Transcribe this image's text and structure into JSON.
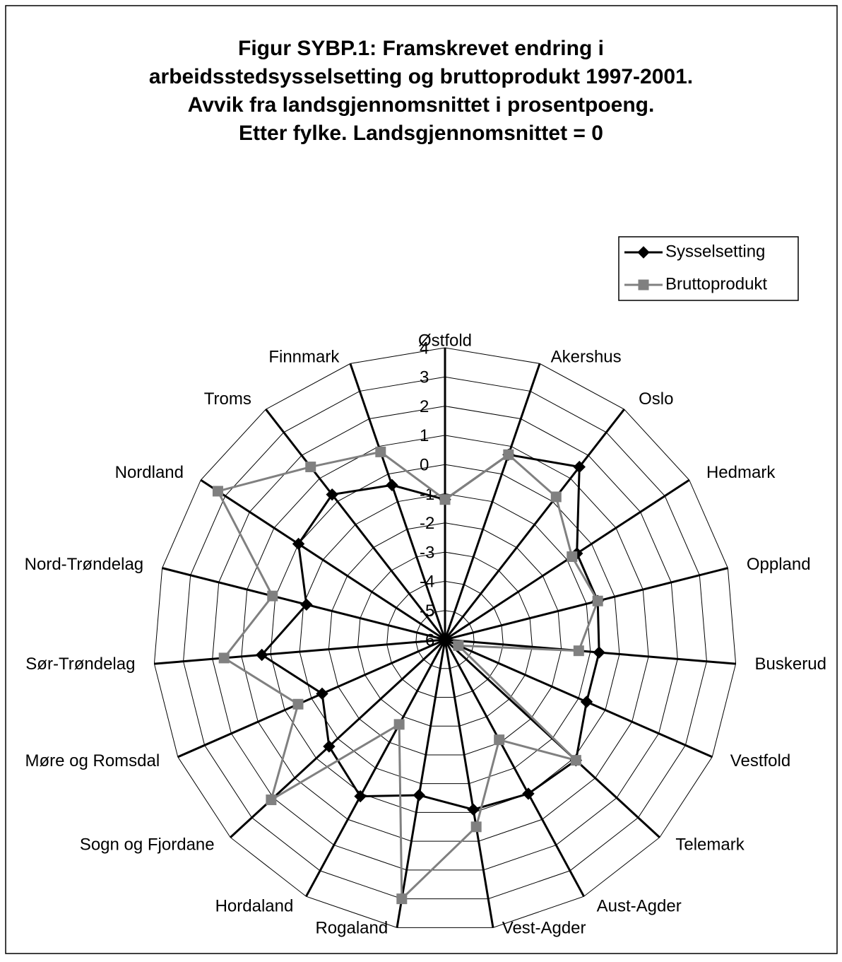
{
  "chart_data": {
    "type": "radar",
    "title": [
      "Figur SYBP.1: Framskrevet endring i",
      "arbeidsstedsysselsetting og bruttoprodukt 1997-2001.",
      "Avvik fra landsgjennomsnittet i prosentpoeng.",
      "Etter fylke. Landsgjennomsnittet = 0"
    ],
    "categories": [
      "Østfold",
      "Akershus",
      "Oslo",
      "Hedmark",
      "Oppland",
      "Buskerud",
      "Vestfold",
      "Telemark",
      "Aust-Agder",
      "Vest-Agder",
      "Rogaland",
      "Hordaland",
      "Sogn og Fjordane",
      "Møre og Romsdal",
      "Sør-Trøndelag",
      "Nord-Trøndelag",
      "Nordland",
      "Troms",
      "Finnmark"
    ],
    "series": [
      {
        "name": "Sysselsetting",
        "color": "#000000",
        "marker": "diamond",
        "values": [
          -1.2,
          0.7,
          1.5,
          -0.6,
          -0.6,
          -0.7,
          -0.7,
          0.1,
          0.0,
          -0.1,
          -0.6,
          0.1,
          -0.6,
          -1.4,
          0.3,
          -1.1,
          0.0,
          0.3,
          -0.4
        ]
      },
      {
        "name": "Bruttoprodukt",
        "color": "#808080",
        "marker": "square",
        "values": [
          -1.2,
          0.7,
          0.2,
          -0.8,
          -0.6,
          -1.4,
          -5.5,
          0.1,
          -2.1,
          0.5,
          3.0,
          -2.7,
          2.1,
          -0.5,
          1.6,
          0.1,
          3.3,
          1.5,
          0.8
        ]
      }
    ],
    "ylim": [
      -6,
      4
    ],
    "yticks": [
      -6,
      -5,
      -4,
      -3,
      -2,
      -1,
      0,
      1,
      2,
      3,
      4
    ],
    "grid": true,
    "legend": "top-right"
  }
}
